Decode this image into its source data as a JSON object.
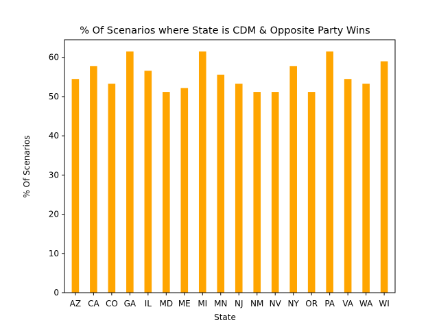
{
  "chart_data": {
    "type": "bar",
    "title": "% Of Scenarios where State is CDM & Opposite Party Wins",
    "xlabel": "State",
    "ylabel": "% Of Scenarios",
    "categories": [
      "AZ",
      "CA",
      "CO",
      "GA",
      "IL",
      "MD",
      "ME",
      "MI",
      "MN",
      "NJ",
      "NM",
      "NV",
      "NY",
      "OR",
      "PA",
      "VA",
      "WA",
      "WI"
    ],
    "values": [
      54.5,
      57.8,
      53.3,
      61.5,
      56.6,
      51.2,
      52.2,
      61.5,
      55.6,
      53.3,
      51.2,
      51.2,
      57.8,
      51.2,
      61.5,
      54.5,
      53.3,
      59.0
    ],
    "ylim": [
      0,
      64.5
    ],
    "yticks": [
      0,
      10,
      20,
      30,
      40,
      50,
      60
    ],
    "bar_color": "#ffa500",
    "grid": false,
    "legend": "none"
  }
}
